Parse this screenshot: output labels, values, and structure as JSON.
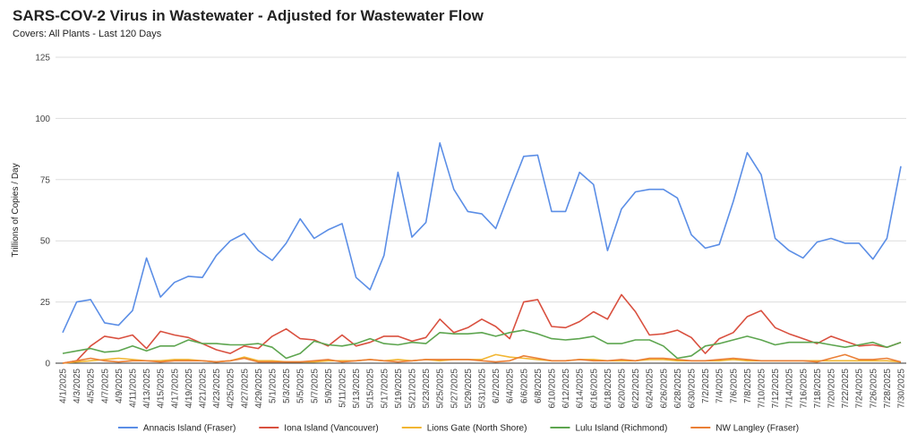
{
  "chart_data": {
    "type": "line",
    "title": "SARS-COV-2 Virus in Wastewater - Adjusted for Wastewater Flow",
    "subtitle": "Covers: All Plants - Last 120 Days",
    "y_label": "Trillions of Copies / Day",
    "categories": [
      "4/1/2025",
      "4/3/2025",
      "4/5/2025",
      "4/7/2025",
      "4/9/2025",
      "4/11/2025",
      "4/13/2025",
      "4/15/2025",
      "4/17/2025",
      "4/19/2025",
      "4/21/2025",
      "4/23/2025",
      "4/25/2025",
      "4/27/2025",
      "4/29/2025",
      "5/1/2025",
      "5/3/2025",
      "5/5/2025",
      "5/7/2025",
      "5/9/2025",
      "5/11/2025",
      "5/13/2025",
      "5/15/2025",
      "5/17/2025",
      "5/19/2025",
      "5/21/2025",
      "5/23/2025",
      "5/25/2025",
      "5/27/2025",
      "5/29/2025",
      "5/31/2025",
      "6/2/2025",
      "6/4/2025",
      "6/6/2025",
      "6/8/2025",
      "6/10/2025",
      "6/12/2025",
      "6/14/2025",
      "6/16/2025",
      "6/18/2025",
      "6/20/2025",
      "6/22/2025",
      "6/24/2025",
      "6/26/2025",
      "6/28/2025",
      "6/30/2025",
      "7/2/2025",
      "7/4/2025",
      "7/6/2025",
      "7/8/2025",
      "7/10/2025",
      "7/12/2025",
      "7/14/2025",
      "7/16/2025",
      "7/18/2025",
      "7/20/2025",
      "7/22/2025",
      "7/24/2025",
      "7/26/2025",
      "7/28/2025",
      "7/30/2025"
    ],
    "series": [
      {
        "name": "Annacis Island (Fraser)",
        "color": "#5b8ee6",
        "values": [
          12.5,
          25,
          26,
          16.5,
          15.5,
          21.5,
          43,
          27,
          33,
          35.5,
          35,
          44,
          50,
          53,
          46,
          42,
          49,
          59,
          51,
          54.5,
          57,
          35,
          30,
          44,
          78,
          51.5,
          57.5,
          90,
          71,
          62,
          61,
          55,
          70,
          84.5,
          85,
          62,
          62,
          78,
          73,
          46,
          63,
          70,
          71,
          71,
          67.5,
          52.5,
          47,
          48.5,
          66,
          86,
          77,
          51,
          46,
          43,
          49.5,
          51,
          49,
          49,
          42.5,
          51,
          80.5
        ]
      },
      {
        "name": "Iona Island (Vancouver)",
        "color": "#d9503f",
        "values": [
          0,
          1,
          7,
          11,
          10,
          11.5,
          6,
          13,
          11.5,
          10.5,
          8,
          5.5,
          4,
          7,
          6,
          11,
          14,
          10,
          9.5,
          7,
          11.5,
          7,
          8.5,
          11,
          11,
          9,
          10.5,
          18,
          12.5,
          14.5,
          18,
          15,
          10,
          25,
          26,
          15,
          14.5,
          17,
          21,
          18,
          28,
          21,
          11.5,
          12,
          13.5,
          10.5,
          4,
          10,
          12.5,
          19,
          21.5,
          14.5,
          12,
          10,
          8,
          11,
          9,
          7,
          7.5,
          6.5,
          8.5
        ]
      },
      {
        "name": "Lions Gate (North Shore)",
        "color": "#f2b632",
        "values": [
          0,
          0.5,
          1,
          1.5,
          2,
          1.5,
          1,
          1,
          1.5,
          1.5,
          1,
          0.5,
          1,
          2.5,
          1,
          1,
          0.5,
          0.5,
          0.5,
          1,
          1,
          1,
          1.5,
          1,
          1.5,
          1,
          1.5,
          1,
          1.5,
          1.5,
          1.5,
          3.5,
          2.5,
          2,
          1.5,
          1,
          1,
          1.5,
          1.5,
          1,
          1,
          1,
          1.5,
          1.5,
          1,
          1,
          1,
          1,
          1.5,
          1,
          1,
          1,
          1,
          1,
          1,
          1,
          1,
          1,
          1,
          1,
          0.5
        ]
      },
      {
        "name": "Lulu Island (Richmond)",
        "color": "#5da54f",
        "values": [
          4,
          5,
          6,
          4.5,
          5,
          7,
          5,
          7,
          7,
          9.5,
          8,
          8,
          7.5,
          7.5,
          8,
          6.5,
          2,
          4,
          9,
          7.5,
          7,
          8,
          10,
          8,
          7.5,
          8.5,
          8,
          12.5,
          12,
          12,
          12.5,
          11,
          12.5,
          13.5,
          12,
          10,
          9.5,
          10,
          11,
          8,
          8,
          9.5,
          9.5,
          7,
          2,
          3,
          7,
          8,
          9.5,
          11,
          9.5,
          7.5,
          8.5,
          8.5,
          8.5,
          7.5,
          6.5,
          7.5,
          8.5,
          6.5,
          8.5
        ]
      },
      {
        "name": "NW Langley (Fraser)",
        "color": "#ea7f36",
        "values": [
          0,
          1,
          2,
          1,
          0.5,
          1,
          1,
          0.5,
          1,
          1,
          1,
          0.5,
          1,
          2,
          0.5,
          0.5,
          0.5,
          0.5,
          1,
          1.5,
          0.5,
          1,
          1.5,
          1,
          0.5,
          1,
          1.5,
          1.5,
          1.5,
          1.5,
          1,
          0.5,
          1,
          3,
          2,
          1,
          1,
          1.5,
          1,
          1,
          1.5,
          1,
          2,
          2,
          1.5,
          1,
          1,
          1.5,
          2,
          1.5,
          1,
          1,
          1,
          1,
          0.5,
          2,
          3.5,
          1.5,
          1.5,
          2,
          0.5
        ]
      }
    ],
    "ylim": [
      0,
      125
    ],
    "yticks": [
      0,
      25,
      50,
      75,
      100,
      125
    ],
    "grid": true,
    "legend": "bottom"
  }
}
